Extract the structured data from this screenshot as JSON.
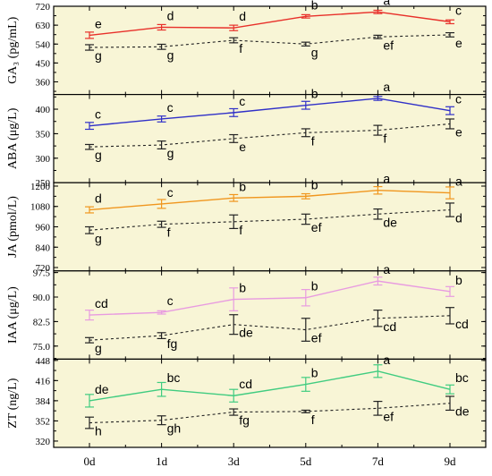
{
  "chart_data": {
    "type": "line",
    "x": [
      "0d",
      "1d",
      "3d",
      "5d",
      "7d",
      "9d"
    ],
    "panels": [
      {
        "ylabel": "GA₃ (pg/mL)",
        "ylim": [
          300,
          720
        ],
        "yticks": [
          360,
          450,
          540,
          630,
          720
        ],
        "series": [
          {
            "color": "#e8302a",
            "style": "solid",
            "values": [
              582,
              620,
              617,
              672,
              693,
              646
            ],
            "errors": [
              15,
              13,
              13,
              8,
              8,
              9
            ],
            "letters": [
              "e",
              "d",
              "d",
              "b",
              "a",
              "c"
            ]
          },
          {
            "color": "#222222",
            "style": "dashed",
            "values": [
              524,
              527,
              558,
              540,
              574,
              584
            ],
            "errors": [
              13,
              12,
              12,
              9,
              8,
              10
            ],
            "letters": [
              "g",
              "g",
              "f",
              "g",
              "ef",
              "e"
            ]
          }
        ]
      },
      {
        "ylabel": "ABA (μg/L)",
        "ylim": [
          250,
          430
        ],
        "yticks": [
          250,
          300,
          350,
          400
        ],
        "series": [
          {
            "color": "#3030c8",
            "style": "solid",
            "values": [
              366,
              380,
              393,
              408,
              422,
              397
            ],
            "errors": [
              7,
              6,
              8,
              8,
              4,
              8
            ],
            "letters": [
              "c",
              "c",
              "c",
              "b",
              "a",
              "c"
            ]
          },
          {
            "color": "#222222",
            "style": "dashed",
            "values": [
              323,
              327,
              340,
              352,
              357,
              370
            ],
            "errors": [
              5,
              8,
              8,
              8,
              10,
              10
            ],
            "letters": [
              "g",
              "g",
              "e",
              "f",
              "f",
              "e"
            ]
          }
        ]
      },
      {
        "ylabel": "JA (pmol/L)",
        "ylim": [
          700,
          1220
        ],
        "yticks": [
          720,
          840,
          960,
          1080,
          1200
        ],
        "series": [
          {
            "color": "#f0961e",
            "style": "solid",
            "values": [
              1060,
              1095,
              1130,
              1140,
              1175,
              1160
            ],
            "errors": [
              18,
              26,
              20,
              15,
              22,
              35
            ],
            "letters": [
              "d",
              "c",
              "b",
              "b",
              "a",
              "a"
            ]
          },
          {
            "color": "#222222",
            "style": "dashed",
            "values": [
              940,
              975,
              990,
              1005,
              1035,
              1060
            ],
            "errors": [
              20,
              18,
              40,
              30,
              30,
              40
            ],
            "letters": [
              "g",
              "f",
              "f",
              "ef",
              "de",
              "d"
            ]
          }
        ]
      },
      {
        "ylabel": "IAA (μg/L)",
        "ylim": [
          71,
          98
        ],
        "yticks": [
          75.0,
          82.5,
          90.0,
          97.5
        ],
        "series": [
          {
            "color": "#e89be0",
            "style": "solid",
            "values": [
              84.5,
              85.3,
              89.3,
              89.8,
              94.9,
              91.7
            ],
            "errors": [
              1.5,
              0.5,
              3.5,
              2.5,
              1.2,
              1.5
            ],
            "letters": [
              "cd",
              "c",
              "b",
              "b",
              "a",
              "b"
            ]
          },
          {
            "color": "#222222",
            "style": "dashed",
            "values": [
              76.8,
              78.2,
              81.6,
              80.0,
              83.5,
              84.3
            ],
            "errors": [
              0.8,
              0.9,
              3.0,
              3.5,
              2.5,
              2.5
            ],
            "letters": [
              "g",
              "fg",
              "de",
              "ef",
              "cd",
              "cd"
            ]
          }
        ]
      },
      {
        "ylabel": "ZT (ng/L)",
        "ylim": [
          310,
          450
        ],
        "yticks": [
          320,
          352,
          384,
          416,
          448
        ],
        "series": [
          {
            "color": "#40cc80",
            "style": "solid",
            "values": [
              384,
              402,
              392,
              410,
              431,
              402
            ],
            "errors": [
              10,
              11,
              10,
              11,
              10,
              7
            ],
            "letters": [
              "de",
              "bc",
              "cd",
              "b",
              "a",
              "bc"
            ]
          },
          {
            "color": "#222222",
            "style": "dashed",
            "values": [
              349,
              353,
              366,
              367,
              372,
              380
            ],
            "errors": [
              9,
              7,
              5,
              2,
              11,
              11
            ],
            "letters": [
              "h",
              "gh",
              "fg",
              "f",
              "ef",
              "de"
            ]
          }
        ]
      }
    ]
  }
}
